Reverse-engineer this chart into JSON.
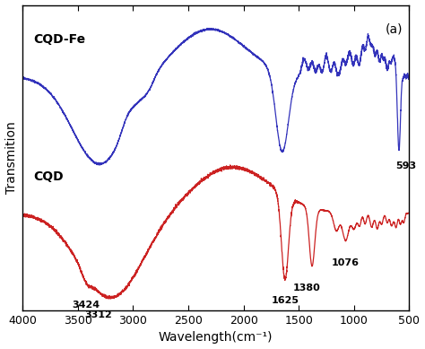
{
  "title": "(a)",
  "xlabel": "Wavelength(cm⁻¹)",
  "ylabel": "Transmition",
  "xlim": [
    4000,
    500
  ],
  "bg_color": "#ffffff",
  "cqd_color": "#cc2222",
  "cqd_fe_color": "#3333bb",
  "label_cqdfe": "CQD-Fe",
  "label_cqd": "CQD",
  "annotations_cqd": [
    {
      "x": 3424,
      "label": "3424"
    },
    {
      "x": 3312,
      "label": "3312"
    },
    {
      "x": 1625,
      "label": "1625"
    },
    {
      "x": 1380,
      "label": "1380"
    },
    {
      "x": 1076,
      "label": "1076"
    }
  ],
  "annotations_cqdfe": [
    {
      "x": 593,
      "label": "593"
    }
  ]
}
